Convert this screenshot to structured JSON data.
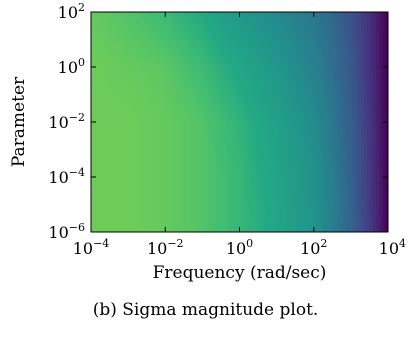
{
  "caption": "(b) Sigma magnitude plot.",
  "colors": {
    "colormap": "viridis",
    "axis": "#000000",
    "background": "#ffffff"
  },
  "chart_data": {
    "type": "heatmap",
    "title": "",
    "xlabel": "Frequency (rad/sec)",
    "ylabel": "Parameter",
    "xscale": "log",
    "yscale": "log",
    "xlim": [
      0.0001,
      10000
    ],
    "ylim": [
      1e-06,
      100
    ],
    "grid": false,
    "colorbar": false,
    "x_ticks": [
      {
        "base": "10",
        "exp": "−4",
        "value": 0.0001
      },
      {
        "base": "10",
        "exp": "−2",
        "value": 0.01
      },
      {
        "base": "10",
        "exp": "0",
        "value": 1
      },
      {
        "base": "10",
        "exp": "2",
        "value": 100
      },
      {
        "base": "10",
        "exp": "4",
        "value": 10000
      }
    ],
    "y_ticks": [
      {
        "base": "10",
        "exp": "−6",
        "value": 1e-06
      },
      {
        "base": "10",
        "exp": "−4",
        "value": 0.0001
      },
      {
        "base": "10",
        "exp": "−2",
        "value": 0.01
      },
      {
        "base": "10",
        "exp": "0",
        "value": 1
      },
      {
        "base": "10",
        "exp": "2",
        "value": 100
      }
    ],
    "colormap": "viridis",
    "color_value_description": "normalized sigma magnitude (1 = yellow-green, 0 = dark purple)",
    "x_log10": [
      -4,
      -3,
      -2,
      -1,
      0,
      1,
      2,
      2.5,
      3,
      3.5,
      4
    ],
    "y_log10": [
      -6,
      -4,
      -2,
      0,
      2
    ],
    "z": [
      [
        0.86,
        0.86,
        0.85,
        0.83,
        0.79,
        0.74,
        0.64,
        0.54,
        0.4,
        0.22,
        0.0
      ],
      [
        0.86,
        0.86,
        0.85,
        0.83,
        0.79,
        0.73,
        0.63,
        0.53,
        0.39,
        0.21,
        0.0
      ],
      [
        0.86,
        0.86,
        0.85,
        0.83,
        0.78,
        0.71,
        0.6,
        0.5,
        0.37,
        0.2,
        0.0
      ],
      [
        0.86,
        0.85,
        0.84,
        0.8,
        0.74,
        0.66,
        0.55,
        0.46,
        0.34,
        0.18,
        0.0
      ],
      [
        0.85,
        0.83,
        0.8,
        0.75,
        0.67,
        0.59,
        0.5,
        0.42,
        0.31,
        0.17,
        0.0
      ]
    ]
  }
}
